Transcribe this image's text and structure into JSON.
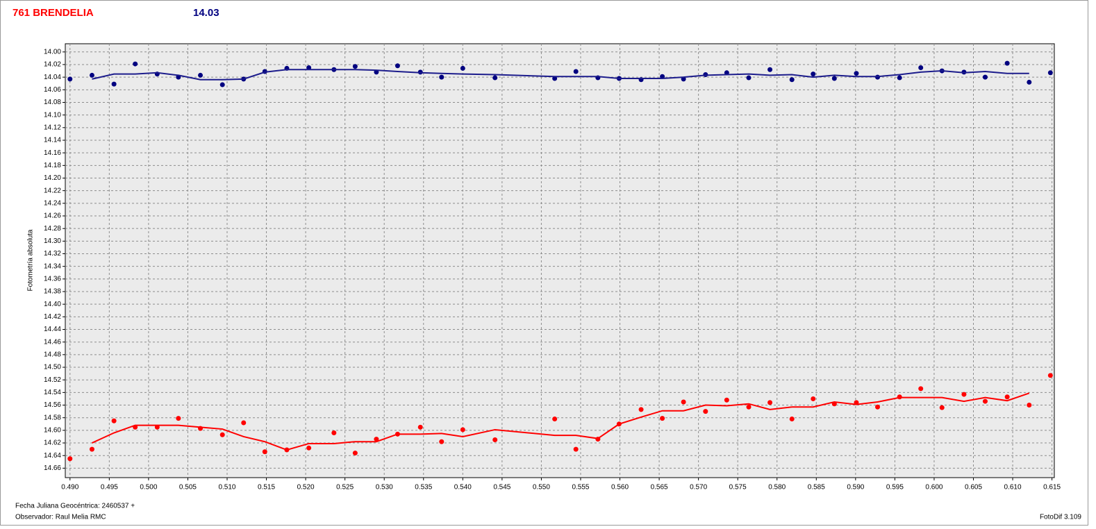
{
  "chart_data": {
    "type": "scatter",
    "title": "761 BRENDELIA",
    "subtitle": "14.03",
    "y_label": "Fotometría absoluta",
    "footer_left_1": "Fecha Juliana Geocéntrica: 2460537 +",
    "footer_left_2": "Observador: Raul Melia RMC",
    "footer_right": "FotoDif 3.109",
    "grid": true,
    "y_inverted": true,
    "xlim": [
      0.4894,
      0.6153
    ],
    "ylim": [
      13.987,
      14.675
    ],
    "x": [
      0.49,
      0.4928,
      0.4956,
      0.4983,
      0.5011,
      0.5038,
      0.5066,
      0.5094,
      0.5121,
      0.5148,
      0.5176,
      0.5204,
      0.5236,
      0.5263,
      0.529,
      0.5317,
      0.5346,
      0.5373,
      0.54,
      0.5441,
      0.5517,
      0.5544,
      0.5572,
      0.5599,
      0.5627,
      0.5654,
      0.5681,
      0.5709,
      0.5736,
      0.5764,
      0.5791,
      0.5819,
      0.5846,
      0.5873,
      0.5901,
      0.5928,
      0.5956,
      0.5983,
      0.601,
      0.6038,
      0.6065,
      0.6093,
      0.6121,
      0.6148
    ],
    "series": [
      {
        "kind": "points",
        "color": "#000080",
        "values": [
          14.043,
          14.037,
          14.051,
          14.019,
          14.035,
          14.04,
          14.037,
          14.052,
          14.043,
          14.031,
          14.026,
          14.025,
          14.028,
          14.023,
          14.032,
          14.022,
          14.032,
          14.04,
          14.026,
          14.041,
          14.042,
          14.031,
          14.041,
          14.042,
          14.044,
          14.039,
          14.043,
          14.036,
          14.033,
          14.041,
          14.028,
          14.044,
          14.035,
          14.042,
          14.034,
          14.04,
          14.041,
          14.025,
          14.03,
          14.032,
          14.04,
          14.018,
          14.048,
          14.033
        ]
      },
      {
        "kind": "points",
        "color": "#ff0000",
        "values": [
          14.645,
          14.63,
          14.585,
          14.595,
          14.595,
          14.581,
          14.597,
          14.607,
          14.588,
          14.634,
          14.631,
          14.628,
          14.604,
          14.636,
          14.614,
          14.606,
          14.595,
          14.618,
          14.599,
          14.615,
          14.582,
          14.63,
          14.614,
          14.59,
          14.567,
          14.581,
          14.555,
          14.57,
          14.552,
          14.563,
          14.556,
          14.582,
          14.55,
          14.558,
          14.556,
          14.563,
          14.547,
          14.534,
          14.564,
          14.543,
          14.554,
          14.547,
          14.56,
          14.513
        ]
      },
      {
        "kind": "line",
        "color": "#1c1c8c",
        "values": [
          null,
          14.043,
          14.035,
          14.035,
          14.033,
          14.037,
          14.044,
          14.044,
          14.043,
          14.032,
          14.028,
          14.028,
          14.028,
          14.028,
          14.029,
          14.031,
          14.033,
          14.034,
          14.035,
          14.036,
          14.039,
          14.039,
          14.039,
          14.042,
          14.042,
          14.042,
          14.04,
          14.037,
          14.036,
          14.035,
          14.037,
          14.036,
          14.04,
          14.037,
          14.039,
          14.039,
          14.036,
          14.032,
          14.03,
          14.033,
          14.031,
          14.034,
          14.034,
          null
        ]
      },
      {
        "kind": "line",
        "color": "#ff0000",
        "values": [
          null,
          14.62,
          14.604,
          14.592,
          14.592,
          14.592,
          14.595,
          14.598,
          14.61,
          14.618,
          14.631,
          14.621,
          14.621,
          14.618,
          14.618,
          14.606,
          14.606,
          14.605,
          14.61,
          14.599,
          14.608,
          14.608,
          14.613,
          14.59,
          14.579,
          14.569,
          14.569,
          14.56,
          14.561,
          14.558,
          14.567,
          14.563,
          14.563,
          14.555,
          14.559,
          14.555,
          14.548,
          14.548,
          14.548,
          14.554,
          14.548,
          14.553,
          14.541,
          null
        ]
      }
    ],
    "xticks": [
      {
        "value": 0.49,
        "label": "0.490"
      },
      {
        "value": 0.495,
        "label": "0.495"
      },
      {
        "value": 0.5,
        "label": "0.500"
      },
      {
        "value": 0.505,
        "label": "0.505"
      },
      {
        "value": 0.51,
        "label": "0.510"
      },
      {
        "value": 0.515,
        "label": "0.515"
      },
      {
        "value": 0.52,
        "label": "0.520"
      },
      {
        "value": 0.525,
        "label": "0.525"
      },
      {
        "value": 0.53,
        "label": "0.530"
      },
      {
        "value": 0.535,
        "label": "0.535"
      },
      {
        "value": 0.54,
        "label": "0.540"
      },
      {
        "value": 0.545,
        "label": "0.545"
      },
      {
        "value": 0.55,
        "label": "0.550"
      },
      {
        "value": 0.555,
        "label": "0.555"
      },
      {
        "value": 0.56,
        "label": "0.560"
      },
      {
        "value": 0.565,
        "label": "0.565"
      },
      {
        "value": 0.57,
        "label": "0.570"
      },
      {
        "value": 0.575,
        "label": "0.575"
      },
      {
        "value": 0.58,
        "label": "0.580"
      },
      {
        "value": 0.585,
        "label": "0.585"
      },
      {
        "value": 0.59,
        "label": "0.590"
      },
      {
        "value": 0.595,
        "label": "0.595"
      },
      {
        "value": 0.6,
        "label": "0.600"
      },
      {
        "value": 0.605,
        "label": "0.605"
      },
      {
        "value": 0.61,
        "label": "0.610"
      },
      {
        "value": 0.615,
        "label": "0.615"
      }
    ],
    "yticks": [
      {
        "value": 14.0,
        "label": "14.00"
      },
      {
        "value": 14.02,
        "label": "14.02"
      },
      {
        "value": 14.04,
        "label": "14.04"
      },
      {
        "value": 14.06,
        "label": "14.06"
      },
      {
        "value": 14.08,
        "label": "14.08"
      },
      {
        "value": 14.1,
        "label": "14.10"
      },
      {
        "value": 14.12,
        "label": "14.12"
      },
      {
        "value": 14.14,
        "label": "14.14"
      },
      {
        "value": 14.16,
        "label": "14.16"
      },
      {
        "value": 14.18,
        "label": "14.18"
      },
      {
        "value": 14.2,
        "label": "14.20"
      },
      {
        "value": 14.22,
        "label": "14.22"
      },
      {
        "value": 14.24,
        "label": "14.24"
      },
      {
        "value": 14.26,
        "label": "14.26"
      },
      {
        "value": 14.28,
        "label": "14.28"
      },
      {
        "value": 14.3,
        "label": "14.30"
      },
      {
        "value": 14.32,
        "label": "14.32"
      },
      {
        "value": 14.34,
        "label": "14.34"
      },
      {
        "value": 14.36,
        "label": "14.36"
      },
      {
        "value": 14.38,
        "label": "14.38"
      },
      {
        "value": 14.4,
        "label": "14.40"
      },
      {
        "value": 14.42,
        "label": "14.42"
      },
      {
        "value": 14.44,
        "label": "14.44"
      },
      {
        "value": 14.46,
        "label": "14.46"
      },
      {
        "value": 14.48,
        "label": "14.48"
      },
      {
        "value": 14.5,
        "label": "14.50"
      },
      {
        "value": 14.52,
        "label": "14.52"
      },
      {
        "value": 14.54,
        "label": "14.54"
      },
      {
        "value": 14.56,
        "label": "14.56"
      },
      {
        "value": 14.58,
        "label": "14.58"
      },
      {
        "value": 14.6,
        "label": "14.60"
      },
      {
        "value": 14.62,
        "label": "14.62"
      },
      {
        "value": 14.64,
        "label": "14.64"
      },
      {
        "value": 14.66,
        "label": "14.66"
      }
    ]
  }
}
